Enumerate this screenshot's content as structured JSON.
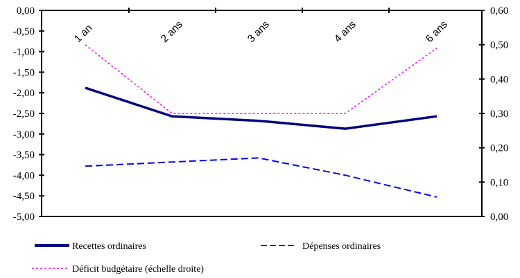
{
  "chart_data": {
    "type": "line",
    "title": "",
    "categories": [
      "1 an",
      "2 ans",
      "3 ans",
      "4 ans",
      "6 ans"
    ],
    "left_axis": {
      "range": [
        -5.0,
        0.0
      ],
      "ticks": [
        "0,00",
        "-0,50",
        "-1,00",
        "-1,50",
        "-2,00",
        "-2,50",
        "-3,00",
        "-3,50",
        "-4,00",
        "-4,50",
        "-5,00"
      ],
      "tick_values": [
        0,
        -0.5,
        -1,
        -1.5,
        -2,
        -2.5,
        -3,
        -3.5,
        -4,
        -4.5,
        -5
      ]
    },
    "right_axis": {
      "range": [
        0.0,
        0.6
      ],
      "ticks": [
        "0,60",
        "0,50",
        "0,40",
        "0,30",
        "0,20",
        "0,10",
        "0,00"
      ],
      "tick_values": [
        0.6,
        0.5,
        0.4,
        0.3,
        0.2,
        0.1,
        0
      ]
    },
    "series": [
      {
        "name": "Recettes ordinaires",
        "axis": "left",
        "style": "solid",
        "color": "#000080",
        "values": [
          -1.88,
          -2.57,
          -2.68,
          -2.87,
          -2.57
        ]
      },
      {
        "name": "Dépenses ordinaires",
        "axis": "left",
        "style": "dashed",
        "color": "#0000ff",
        "values": [
          -3.78,
          -3.68,
          -3.58,
          -4.0,
          -4.53
        ]
      },
      {
        "name": "Déficit budgétaire (échelle droite)",
        "axis": "right",
        "style": "dotted",
        "color": "#ff00ff",
        "values": [
          0.5,
          0.3,
          0.3,
          0.3,
          0.49
        ]
      }
    ],
    "grid": false,
    "legend_position": "bottom"
  }
}
